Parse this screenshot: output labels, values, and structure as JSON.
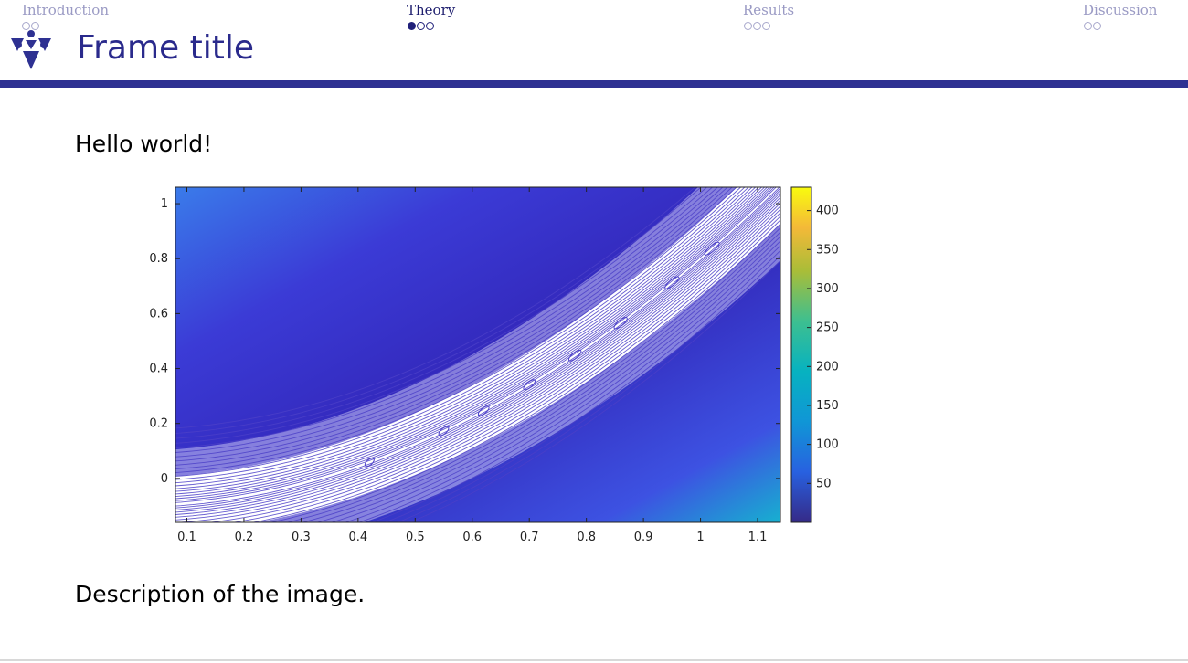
{
  "nav": {
    "sections": [
      {
        "label": "Introduction",
        "dots": 2,
        "filled": 0
      },
      {
        "label": "Theory",
        "dots": 3,
        "filled": 1
      },
      {
        "label": "Results",
        "dots": 3,
        "filled": 0
      },
      {
        "label": "Discussion",
        "dots": 2,
        "filled": 0
      }
    ],
    "current_index": 1
  },
  "frame": {
    "title": "Frame title",
    "text_above": "Hello world!",
    "text_below": "Description of the image."
  },
  "colors": {
    "theme": "#2e3192",
    "title": "#2a2a8c",
    "nav_inactive": "#9a9ac4",
    "nav_active": "#1e1e6e"
  },
  "chart_data": {
    "type": "heatmap",
    "title": "",
    "xlabel": "",
    "ylabel": "",
    "xlim": [
      0.08,
      1.14
    ],
    "ylim": [
      -0.16,
      1.06
    ],
    "xticks": [
      0.1,
      0.2,
      0.3,
      0.4,
      0.5,
      0.6,
      0.7,
      0.8,
      0.9,
      1,
      1.1
    ],
    "yticks": [
      0,
      0.2,
      0.4,
      0.6,
      0.8,
      1
    ],
    "colorbar": {
      "range": [
        0,
        430
      ],
      "ticks": [
        50,
        100,
        150,
        200,
        250,
        300,
        350,
        400
      ],
      "colormap": "parula"
    },
    "contour_overlay": true,
    "contour_color": "#4b3fc8"
  }
}
